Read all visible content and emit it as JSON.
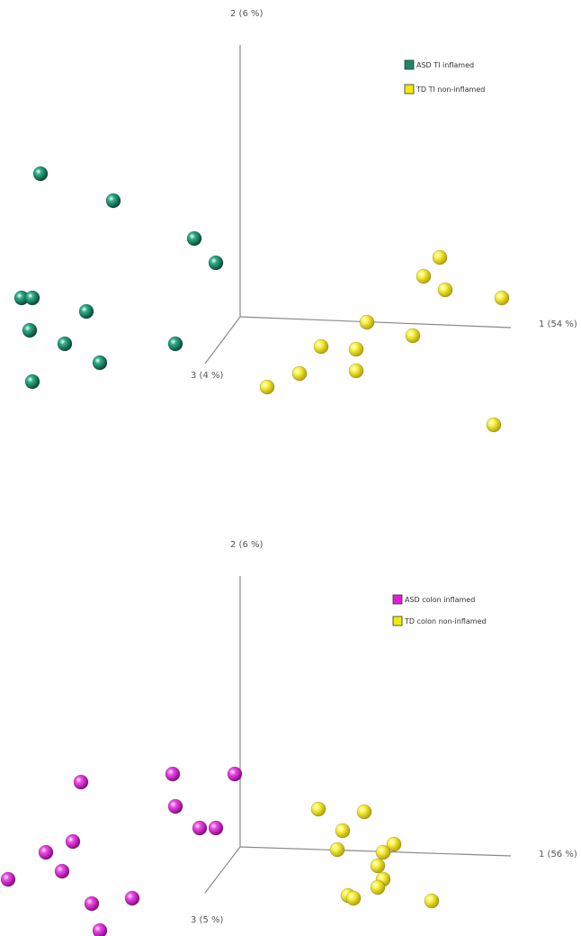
{
  "chart_data": [
    {
      "type": "scatter",
      "projection": "3d",
      "axes": {
        "x": "1 (54 %)",
        "y": "2 (6 %)",
        "z": "3 (4 %)"
      },
      "legend_position": "top-right",
      "series": [
        {
          "name": "ASD TI inflamed",
          "color": "#1a8a68",
          "points": [
            [
              -0.74,
              0.53
            ],
            [
              -0.47,
              0.43
            ],
            [
              -0.17,
              0.29
            ],
            [
              -0.09,
              0.2
            ],
            [
              -0.81,
              0.07
            ],
            [
              -0.77,
              0.07
            ],
            [
              -0.57,
              0.02
            ],
            [
              -0.78,
              -0.05
            ],
            [
              -0.65,
              -0.1
            ],
            [
              -0.24,
              -0.1
            ],
            [
              -0.52,
              -0.17
            ],
            [
              -0.77,
              -0.24
            ]
          ]
        },
        {
          "name": "TD TI non-inflamed",
          "color": "#f2ea0a",
          "points": [
            [
              0.74,
              0.22
            ],
            [
              0.68,
              0.15
            ],
            [
              0.76,
              0.1
            ],
            [
              0.97,
              0.07
            ],
            [
              0.47,
              -0.02
            ],
            [
              0.64,
              -0.07
            ],
            [
              0.3,
              -0.11
            ],
            [
              0.43,
              -0.12
            ],
            [
              0.43,
              -0.2
            ],
            [
              0.22,
              -0.21
            ],
            [
              0.1,
              -0.26
            ],
            [
              0.94,
              -0.4
            ]
          ]
        }
      ]
    },
    {
      "type": "scatter",
      "projection": "3d",
      "axes": {
        "x": "1 (56 %)",
        "y": "2 (6 %)",
        "z": "3 (5 %)"
      },
      "legend_position": "top-right",
      "series": [
        {
          "name": "ASD colon inflamed",
          "color": "#e01ed8",
          "points": [
            [
              -0.25,
              0.27
            ],
            [
              -0.02,
              0.27
            ],
            [
              -0.59,
              0.24
            ],
            [
              -0.24,
              0.15
            ],
            [
              -0.15,
              0.07
            ],
            [
              -0.09,
              0.07
            ],
            [
              -0.62,
              0.02
            ],
            [
              -0.72,
              -0.02
            ],
            [
              -0.66,
              -0.09
            ],
            [
              -0.86,
              -0.12
            ],
            [
              -0.4,
              -0.19
            ],
            [
              -0.55,
              -0.21
            ],
            [
              -0.52,
              -0.31
            ]
          ]
        },
        {
          "name": "TD colon non-inflamed",
          "color": "#f2ea0a",
          "points": [
            [
              0.29,
              0.14
            ],
            [
              0.46,
              0.13
            ],
            [
              0.38,
              0.06
            ],
            [
              0.57,
              0.01
            ],
            [
              0.36,
              -0.01
            ],
            [
              0.53,
              -0.02
            ],
            [
              0.51,
              -0.07
            ],
            [
              0.53,
              -0.12
            ],
            [
              0.51,
              -0.15
            ],
            [
              0.4,
              -0.18
            ],
            [
              0.42,
              -0.19
            ],
            [
              0.71,
              -0.2
            ]
          ]
        }
      ]
    }
  ]
}
